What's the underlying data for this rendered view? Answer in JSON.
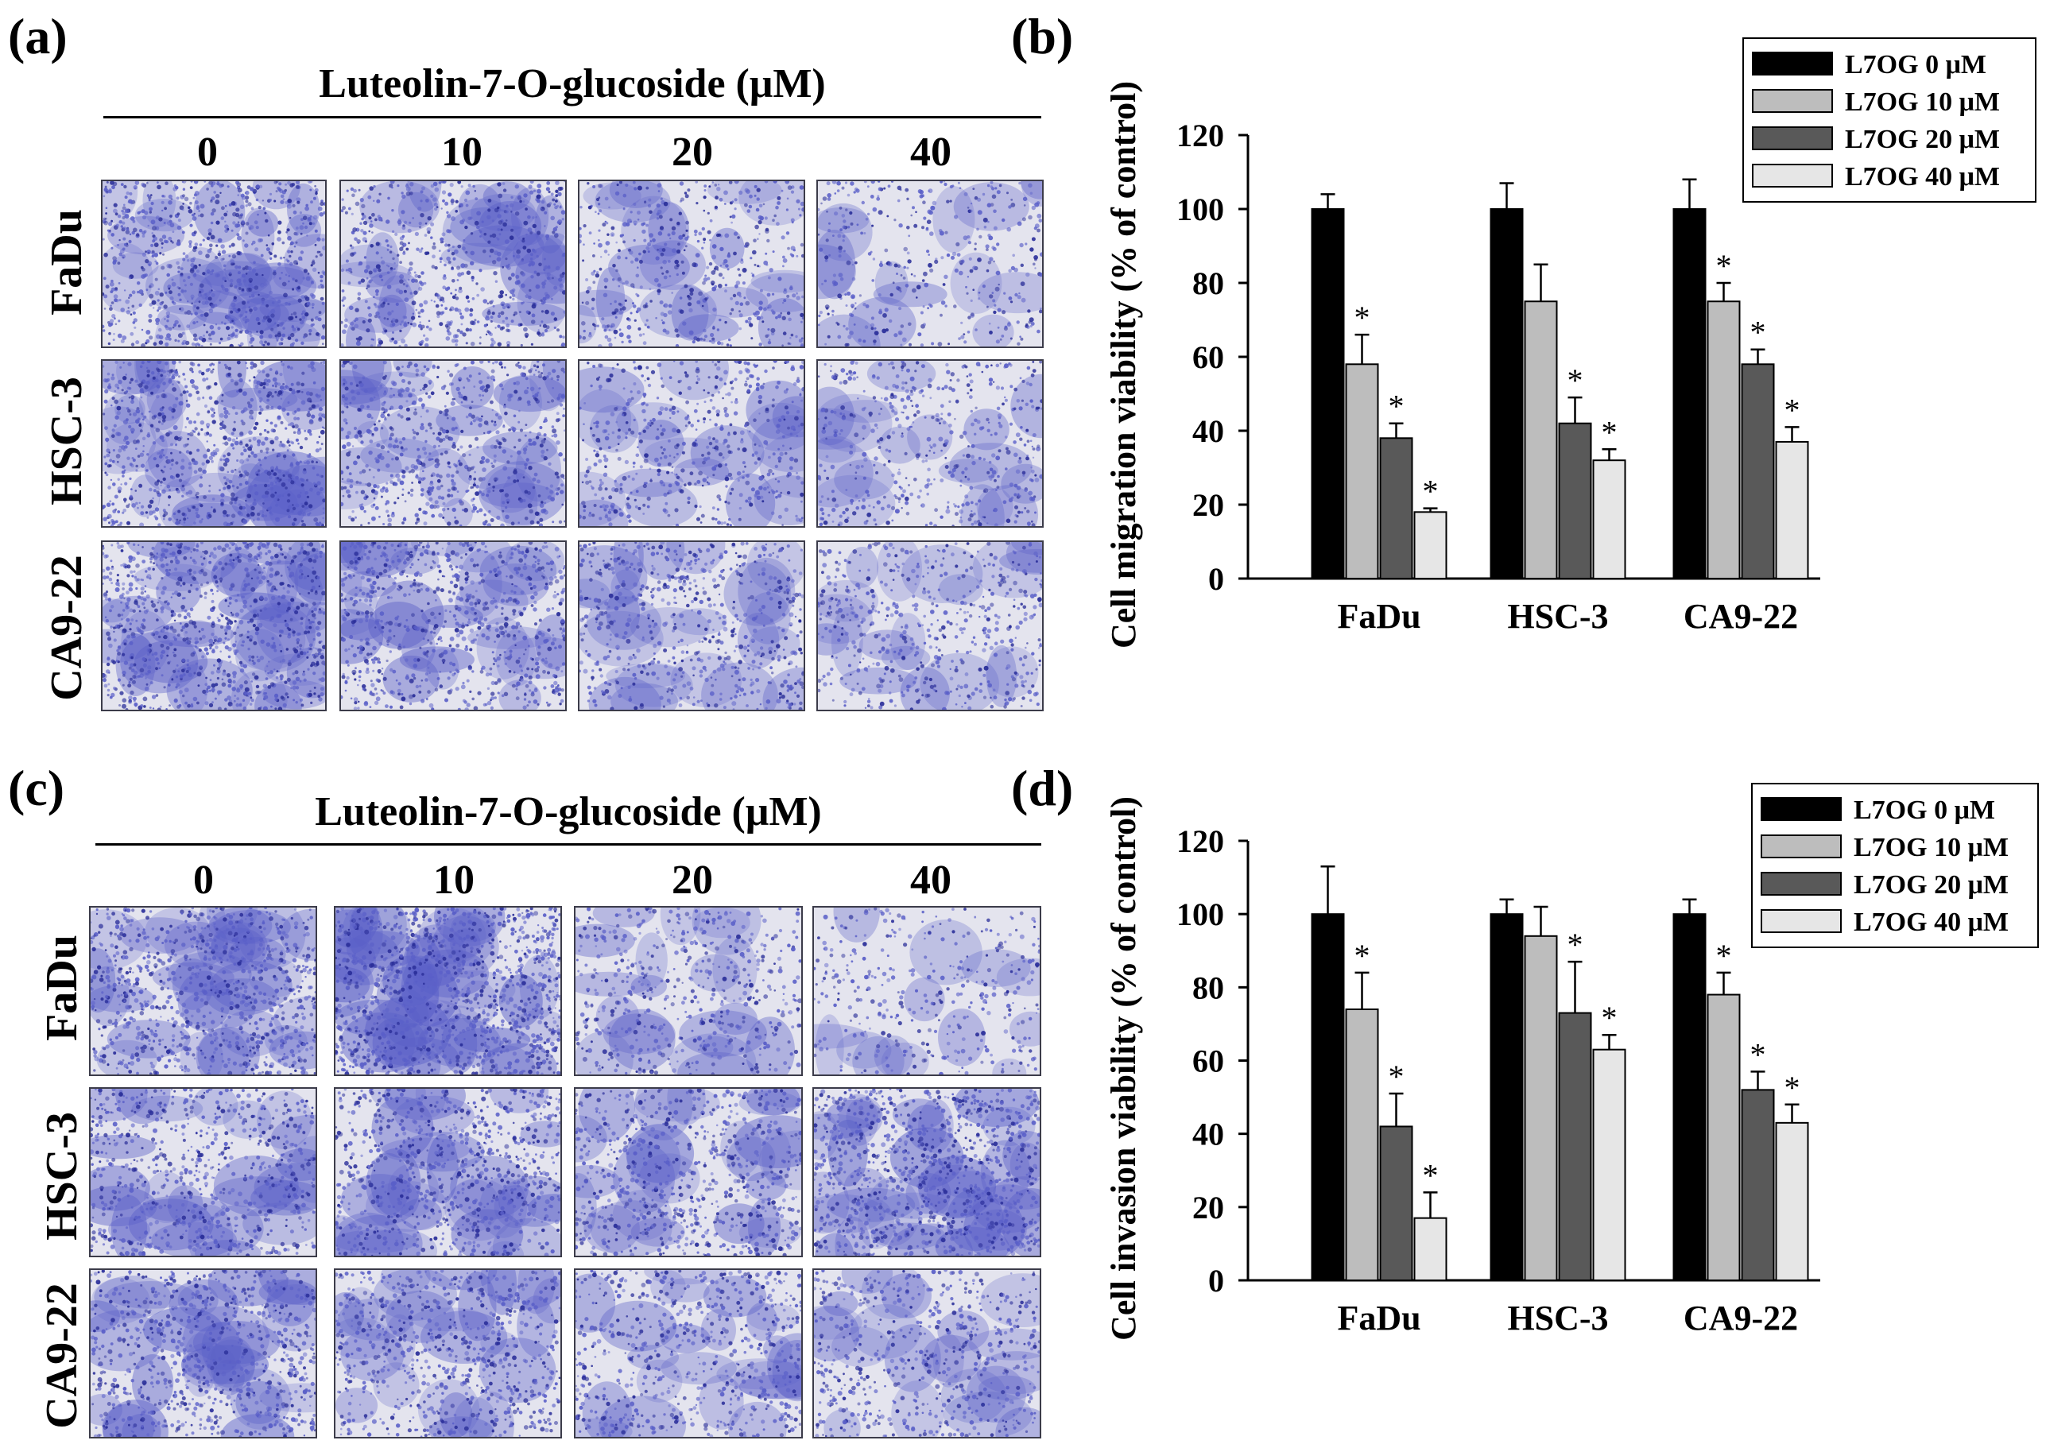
{
  "panels": {
    "a": {
      "letter": "(a)",
      "title": "Luteolin-7-O-glucoside (μM)",
      "concentrations": [
        "0",
        "10",
        "20",
        "40"
      ],
      "rows": [
        "FaDu",
        "HSC-3",
        "CA9-22"
      ]
    },
    "b": {
      "letter": "(b)"
    },
    "c": {
      "letter": "(c)",
      "title": "Luteolin-7-O-glucoside (μM)",
      "concentrations": [
        "0",
        "10",
        "20",
        "40"
      ],
      "rows": [
        "FaDu",
        "HSC-3",
        "CA9-22"
      ]
    },
    "d": {
      "letter": "(d)"
    }
  },
  "colors": {
    "stain": "#5a5fc8",
    "stain_dark": "#2b2f9a",
    "background_light": "#e4e4ee",
    "series": [
      "#000000",
      "#bdbdbd",
      "#595959",
      "#e6e6e6"
    ]
  },
  "chart_data": [
    {
      "type": "bar",
      "title": "",
      "xlabel": "",
      "ylabel": "Cell migration viability (% of control)",
      "categories": [
        "FaDu",
        "HSC-3",
        "CA9-22"
      ],
      "ylim": [
        0,
        120
      ],
      "yticks": [
        "0",
        "20",
        "40",
        "60",
        "80",
        "100",
        "120"
      ],
      "legend_position": "top-right",
      "series": [
        {
          "name": "L7OG 0 μM",
          "values": [
            100,
            100,
            100
          ],
          "errors": [
            4,
            7,
            8
          ],
          "sig": [
            "",
            "",
            ""
          ]
        },
        {
          "name": "L7OG 10 μM",
          "values": [
            58,
            75,
            75
          ],
          "errors": [
            8,
            10,
            5
          ],
          "sig": [
            "*",
            "",
            "*"
          ]
        },
        {
          "name": "L7OG 20 μM",
          "values": [
            38,
            42,
            58
          ],
          "errors": [
            4,
            7,
            4
          ],
          "sig": [
            "*",
            "*",
            "*"
          ]
        },
        {
          "name": "L7OG 40 μM",
          "values": [
            18,
            32,
            37
          ],
          "errors": [
            1,
            3,
            4
          ],
          "sig": [
            "*",
            "*",
            "*"
          ]
        }
      ]
    },
    {
      "type": "bar",
      "title": "",
      "xlabel": "",
      "ylabel": "Cell invasion viability (% of control)",
      "categories": [
        "FaDu",
        "HSC-3",
        "CA9-22"
      ],
      "ylim": [
        0,
        120
      ],
      "yticks": [
        "0",
        "20",
        "40",
        "60",
        "80",
        "100",
        "120"
      ],
      "legend_position": "top-right",
      "series": [
        {
          "name": "L7OG 0 μM",
          "values": [
            100,
            100,
            100
          ],
          "errors": [
            13,
            4,
            4
          ],
          "sig": [
            "",
            "",
            ""
          ]
        },
        {
          "name": "L7OG 10 μM",
          "values": [
            74,
            94,
            78
          ],
          "errors": [
            10,
            8,
            6
          ],
          "sig": [
            "*",
            "",
            "*"
          ]
        },
        {
          "name": "L7OG 20 μM",
          "values": [
            42,
            73,
            52
          ],
          "errors": [
            9,
            14,
            5
          ],
          "sig": [
            "*",
            "*",
            "*"
          ]
        },
        {
          "name": "L7OG 40 μM",
          "values": [
            17,
            63,
            43
          ],
          "errors": [
            7,
            4,
            5
          ],
          "sig": [
            "*",
            "*",
            "*"
          ]
        }
      ]
    }
  ]
}
